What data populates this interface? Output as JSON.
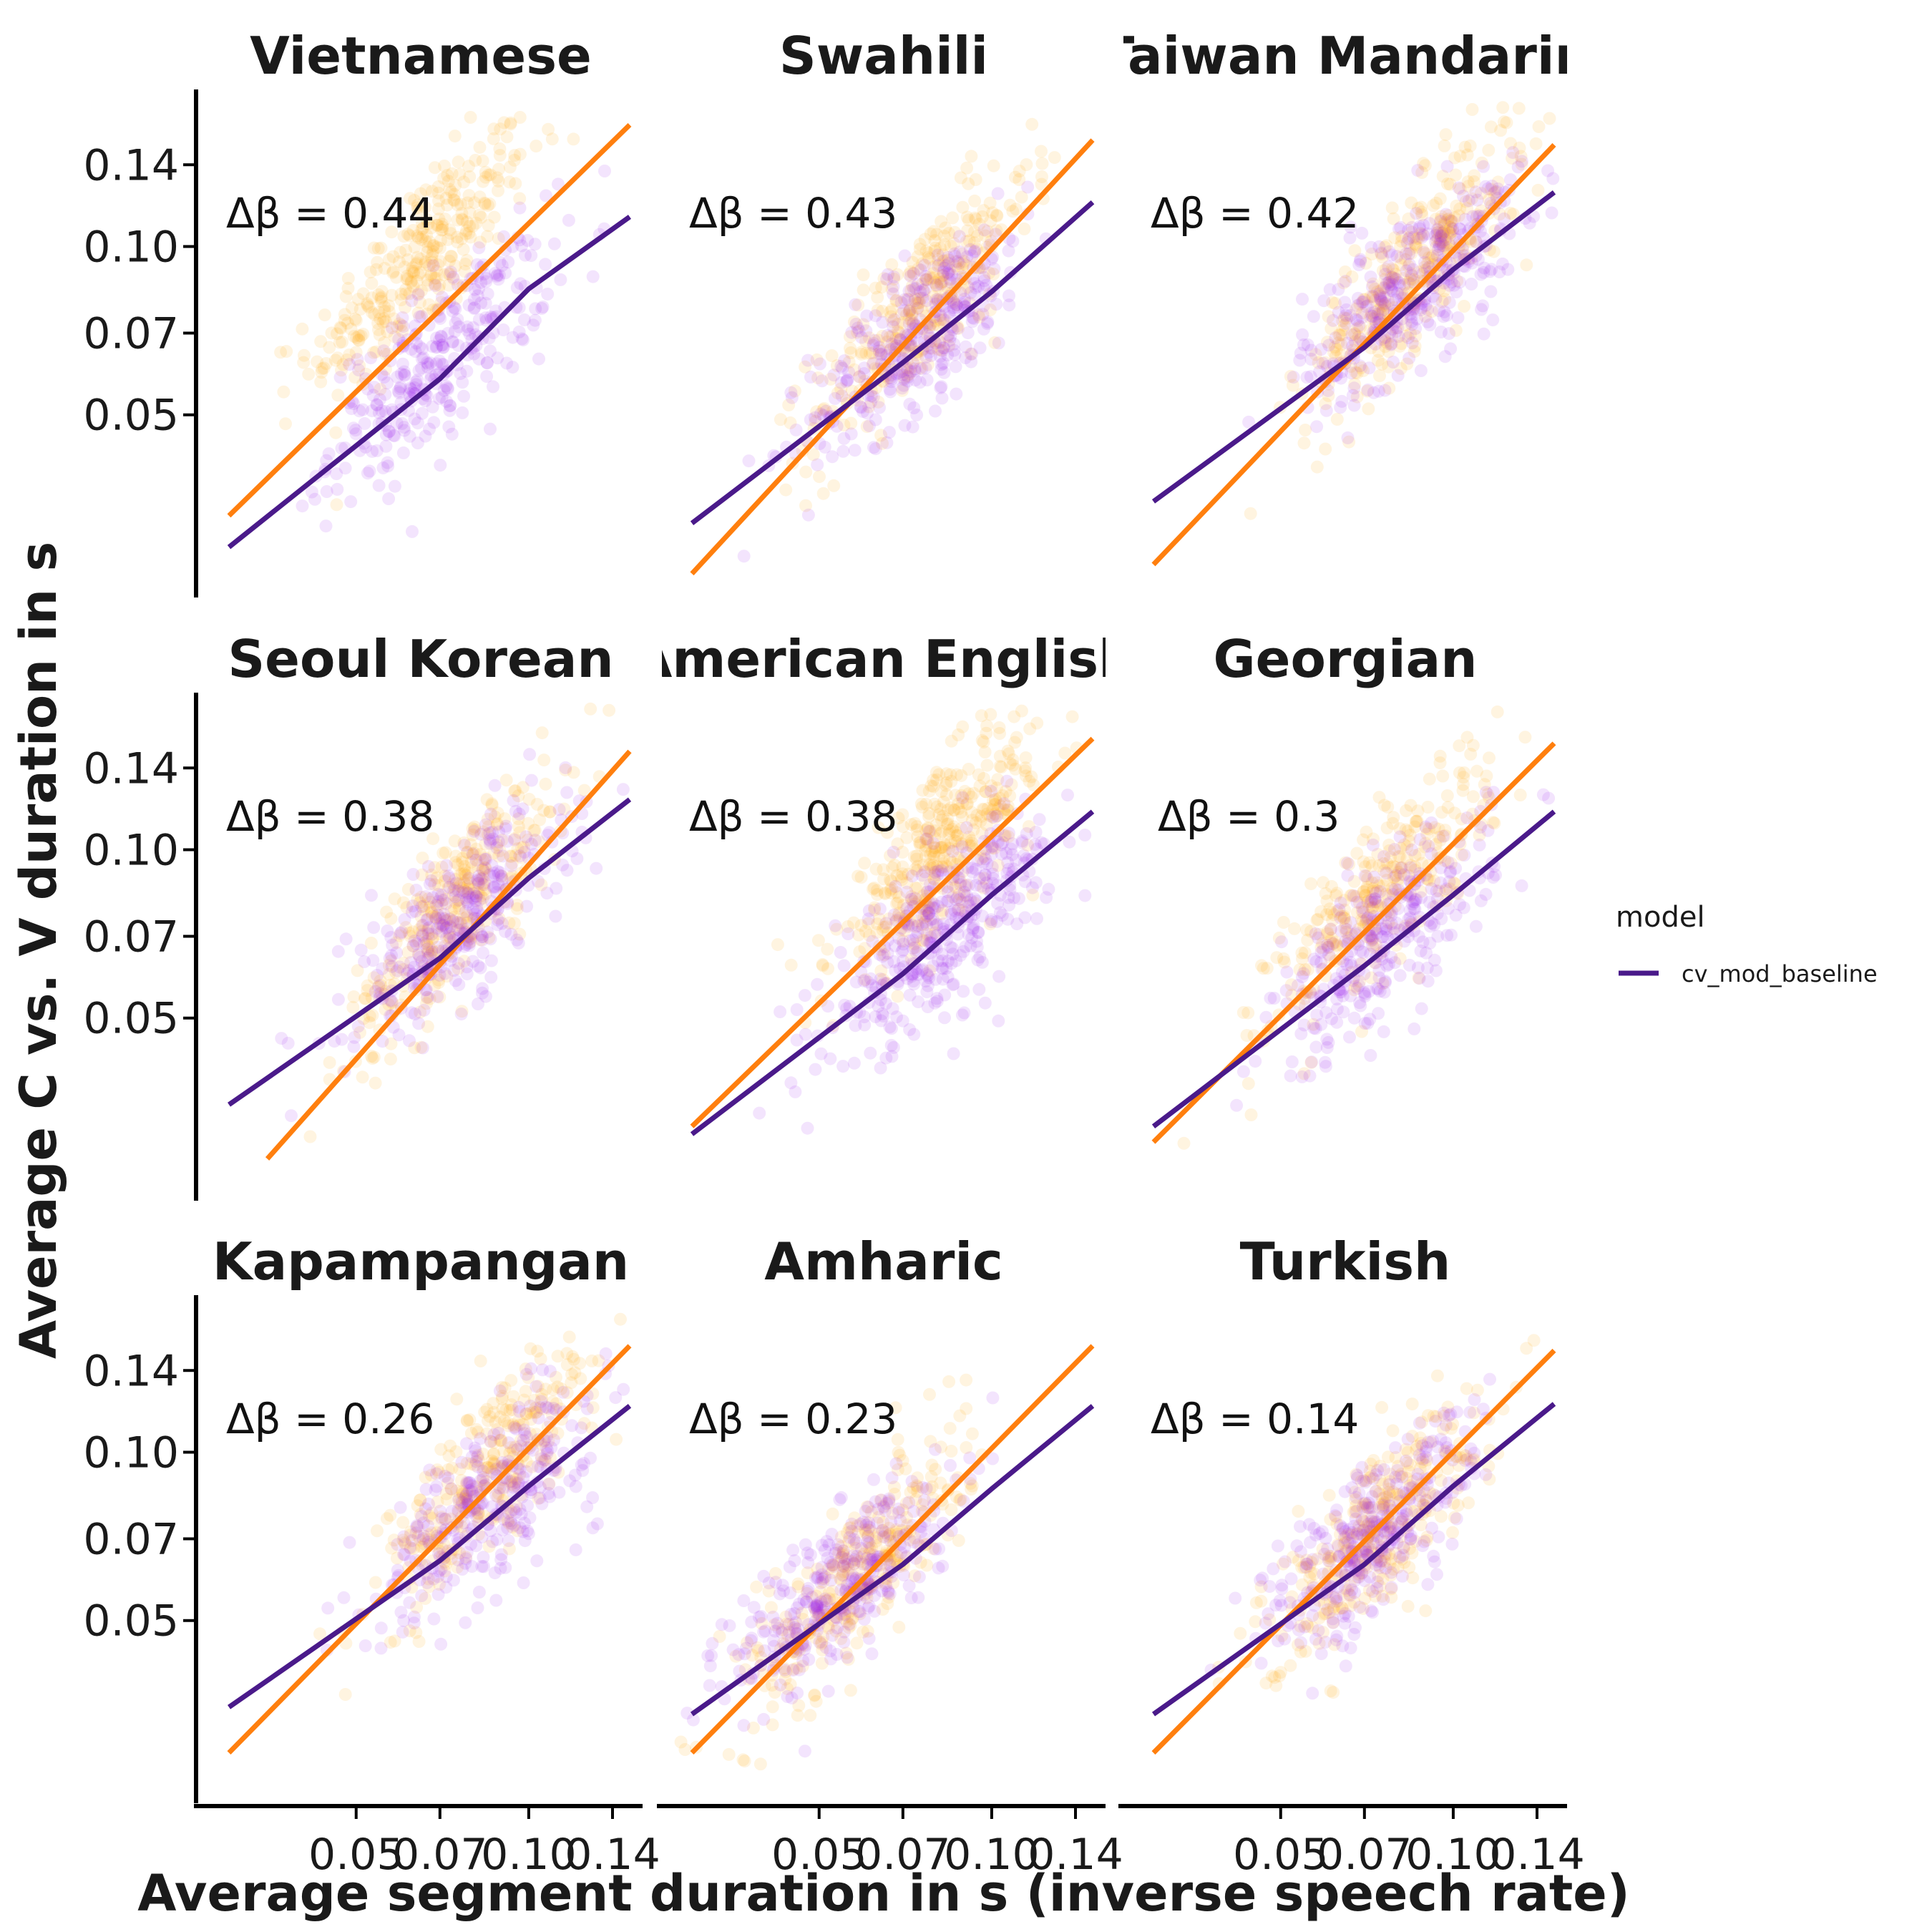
{
  "chart_data": {
    "type": "scatter",
    "xlabel": "Average segment duration in s (inverse speech rate)",
    "ylabel": "Average C vs. V duration in s",
    "x_scale": "log",
    "y_scale": "log",
    "xlim": [
      0.028,
      0.15
    ],
    "ylim": [
      0.025,
      0.18
    ],
    "x_ticks": [
      0.05,
      0.07,
      0.1,
      0.14
    ],
    "x_tick_labels": [
      "0.05",
      "0.07",
      "0.10",
      "0.14"
    ],
    "y_ticks": [
      0.05,
      0.07,
      0.1,
      0.14
    ],
    "y_tick_labels": [
      "0.05",
      "0.07",
      "0.10",
      "0.14"
    ],
    "grid": false,
    "legend": {
      "title": "model",
      "position": "right",
      "entries": [
        {
          "name": "cv_mod_baseline",
          "color": "#4a1a8a"
        }
      ]
    },
    "colors": {
      "point_orange": "#ffa500",
      "point_purple": "#a020f0",
      "line_orange": "#ff7f0e",
      "line_purple": "#4a1a8a"
    },
    "facets": [
      {
        "title": "Vietnamese",
        "annotation": "Δβ = 0.44",
        "orange_line": {
          "x": [
            0.03,
            0.15
          ],
          "y": [
            0.033,
            0.165
          ]
        },
        "purple_line": {
          "x": [
            0.03,
            0.07,
            0.1,
            0.15
          ],
          "y": [
            0.029,
            0.058,
            0.084,
            0.113
          ]
        },
        "cloud_orange": {
          "cx": 0.065,
          "cy": 0.095,
          "count": 320
        },
        "cloud_purple": {
          "cx": 0.07,
          "cy": 0.063,
          "count": 320
        }
      },
      {
        "title": "Swahili",
        "annotation": "Δβ = 0.43",
        "orange_line": {
          "x": [
            0.03,
            0.15
          ],
          "y": [
            0.026,
            0.155
          ]
        },
        "purple_line": {
          "x": [
            0.03,
            0.07,
            0.1,
            0.15
          ],
          "y": [
            0.032,
            0.062,
            0.083,
            0.12
          ]
        },
        "cloud_orange": {
          "cx": 0.075,
          "cy": 0.078,
          "count": 320
        },
        "cloud_purple": {
          "cx": 0.075,
          "cy": 0.07,
          "count": 320
        }
      },
      {
        "title": "Taiwan Mandarin",
        "annotation": "Δβ = 0.42",
        "orange_line": {
          "x": [
            0.03,
            0.15
          ],
          "y": [
            0.027,
            0.152
          ]
        },
        "purple_line": {
          "x": [
            0.03,
            0.07,
            0.1,
            0.15
          ],
          "y": [
            0.035,
            0.066,
            0.091,
            0.125
          ]
        },
        "cloud_orange": {
          "cx": 0.085,
          "cy": 0.09,
          "count": 340
        },
        "cloud_purple": {
          "cx": 0.085,
          "cy": 0.085,
          "count": 340
        }
      },
      {
        "title": "Seoul Korean",
        "annotation": "Δβ = 0.38",
        "orange_line": {
          "x": [
            0.035,
            0.15
          ],
          "y": [
            0.028,
            0.15
          ]
        },
        "purple_line": {
          "x": [
            0.03,
            0.07,
            0.1,
            0.15
          ],
          "y": [
            0.035,
            0.064,
            0.089,
            0.123
          ]
        },
        "cloud_orange": {
          "cx": 0.075,
          "cy": 0.08,
          "count": 320
        },
        "cloud_purple": {
          "cx": 0.075,
          "cy": 0.074,
          "count": 320
        }
      },
      {
        "title": "American English",
        "annotation": "Δβ = 0.38",
        "orange_line": {
          "x": [
            0.03,
            0.15
          ],
          "y": [
            0.032,
            0.158
          ]
        },
        "purple_line": {
          "x": [
            0.03,
            0.07,
            0.1,
            0.15
          ],
          "y": [
            0.031,
            0.06,
            0.083,
            0.117
          ]
        },
        "cloud_orange": {
          "cx": 0.082,
          "cy": 0.1,
          "count": 380
        },
        "cloud_purple": {
          "cx": 0.082,
          "cy": 0.072,
          "count": 380
        }
      },
      {
        "title": "Georgian",
        "annotation": "Δβ = 0.3",
        "orange_line": {
          "x": [
            0.03,
            0.15
          ],
          "y": [
            0.03,
            0.155
          ]
        },
        "purple_line": {
          "x": [
            0.03,
            0.07,
            0.1,
            0.15
          ],
          "y": [
            0.032,
            0.062,
            0.083,
            0.117
          ]
        },
        "cloud_orange": {
          "cx": 0.075,
          "cy": 0.085,
          "count": 300
        },
        "cloud_purple": {
          "cx": 0.075,
          "cy": 0.068,
          "count": 300
        }
      },
      {
        "title": "Kapampangan",
        "annotation": "Δβ = 0.26",
        "orange_line": {
          "x": [
            0.03,
            0.15
          ],
          "y": [
            0.029,
            0.155
          ]
        },
        "purple_line": {
          "x": [
            0.03,
            0.07,
            0.1,
            0.15
          ],
          "y": [
            0.035,
            0.064,
            0.087,
            0.121
          ]
        },
        "cloud_orange": {
          "cx": 0.085,
          "cy": 0.092,
          "count": 300
        },
        "cloud_purple": {
          "cx": 0.085,
          "cy": 0.082,
          "count": 300
        }
      },
      {
        "title": "Amharic",
        "annotation": "Δβ = 0.23",
        "orange_line": {
          "x": [
            0.03,
            0.15
          ],
          "y": [
            0.029,
            0.155
          ]
        },
        "purple_line": {
          "x": [
            0.03,
            0.07,
            0.1,
            0.15
          ],
          "y": [
            0.034,
            0.063,
            0.086,
            0.121
          ]
        },
        "cloud_orange": {
          "cx": 0.058,
          "cy": 0.06,
          "count": 320
        },
        "cloud_purple": {
          "cx": 0.055,
          "cy": 0.058,
          "count": 320
        }
      },
      {
        "title": "Turkish",
        "annotation": "Δβ = 0.14",
        "orange_line": {
          "x": [
            0.03,
            0.15
          ],
          "y": [
            0.029,
            0.152
          ]
        },
        "purple_line": {
          "x": [
            0.03,
            0.07,
            0.1,
            0.15
          ],
          "y": [
            0.034,
            0.063,
            0.087,
            0.122
          ]
        },
        "cloud_orange": {
          "cx": 0.072,
          "cy": 0.072,
          "count": 320
        },
        "cloud_purple": {
          "cx": 0.072,
          "cy": 0.07,
          "count": 320
        }
      }
    ]
  }
}
